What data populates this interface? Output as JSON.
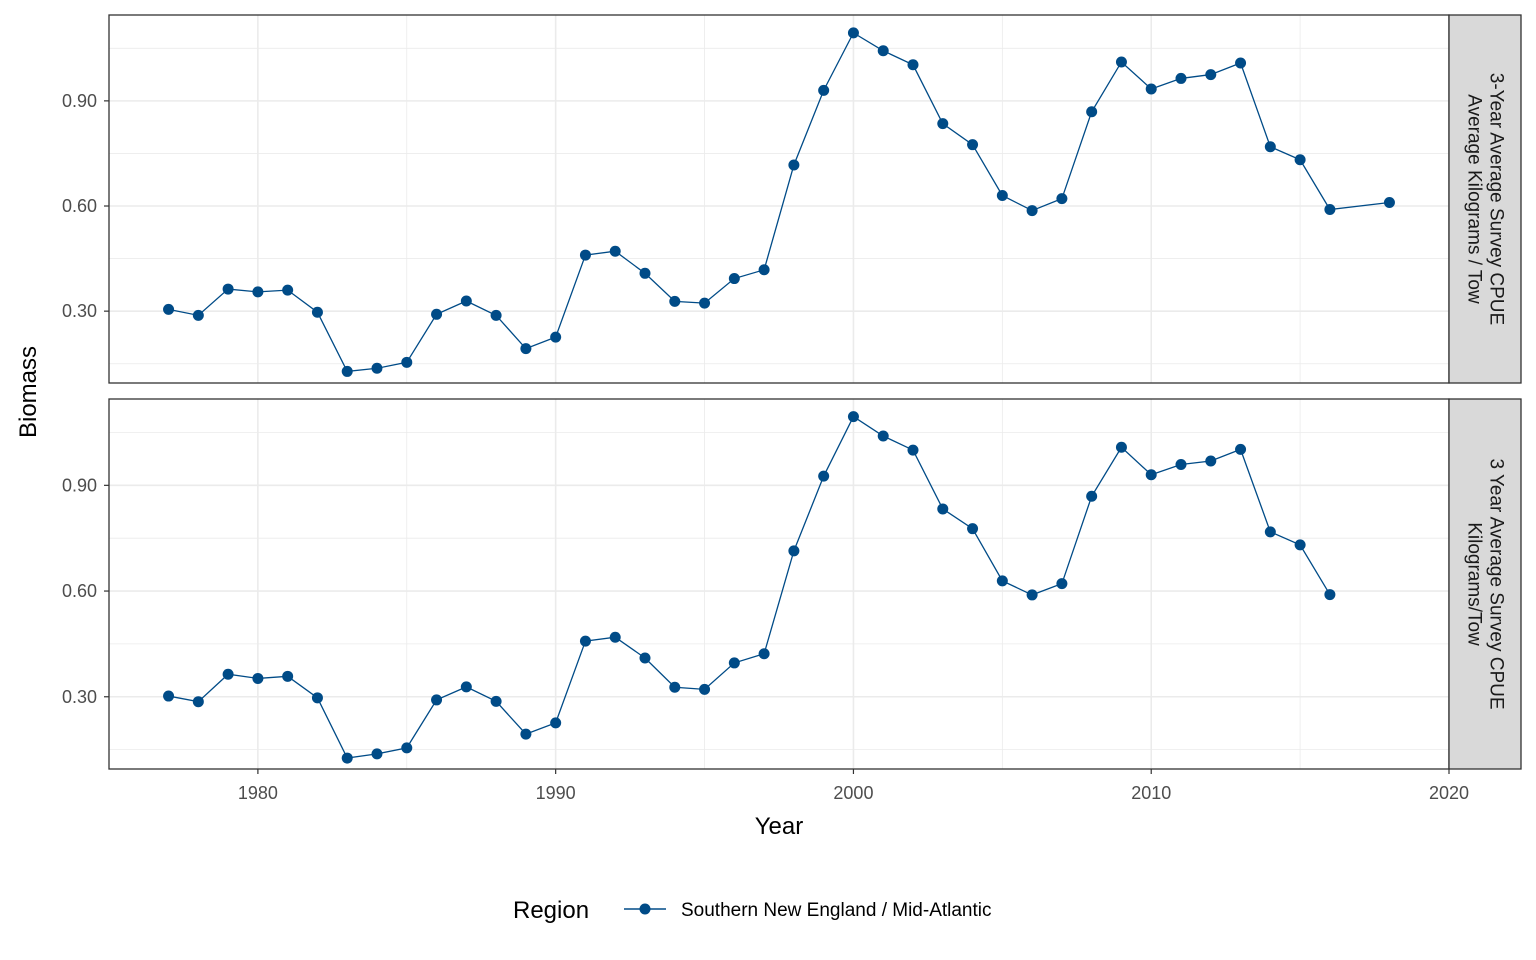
{
  "chart_data": {
    "type": "line",
    "xlabel": "Year",
    "ylabel": "Biomass",
    "xlim": [
      1975,
      2020
    ],
    "x_ticks": [
      "1980",
      "1990",
      "2000",
      "2010",
      "2020"
    ],
    "y_ticks": [
      "0.30",
      "0.60",
      "0.90"
    ],
    "ylim": [
      0.095,
      1.145
    ],
    "grid": true,
    "legend": {
      "position": "bottom",
      "title": "Region",
      "entries": [
        "Southern New England / Mid-Atlantic"
      ]
    },
    "colors": {
      "series": "#004b87",
      "strip_fill": "#d9d9d9",
      "grid": "#ebebeb"
    },
    "panels": [
      {
        "strip_lines": [
          "3-Year Average Survey CPUE",
          "Average Kilograms / Tow"
        ],
        "series": [
          {
            "name": "Southern New England / Mid-Atlantic",
            "x": [
              1977,
              1978,
              1979,
              1980,
              1981,
              1982,
              1983,
              1984,
              1985,
              1986,
              1987,
              1988,
              1989,
              1990,
              1991,
              1992,
              1993,
              1994,
              1995,
              1996,
              1997,
              1998,
              1999,
              2000,
              2001,
              2002,
              2003,
              2004,
              2005,
              2006,
              2007,
              2008,
              2009,
              2010,
              2011,
              2012,
              2013,
              2014,
              2015,
              2016,
              2018
            ],
            "y": [
              0.305,
              0.288,
              0.363,
              0.355,
              0.36,
              0.297,
              0.128,
              0.137,
              0.154,
              0.291,
              0.329,
              0.288,
              0.193,
              0.226,
              0.46,
              0.471,
              0.408,
              0.328,
              0.323,
              0.393,
              0.418,
              0.717,
              0.93,
              1.094,
              1.043,
              1.003,
              0.835,
              0.775,
              0.63,
              0.587,
              0.621,
              0.869,
              1.011,
              0.934,
              0.964,
              0.975,
              1.008,
              0.769,
              0.732,
              0.59,
              0.61
            ]
          }
        ]
      },
      {
        "strip_lines": [
          "3 Year Average Survey CPUE",
          "Kilograms/Tow"
        ],
        "series": [
          {
            "name": "Southern New England / Mid-Atlantic",
            "x": [
              1977,
              1978,
              1979,
              1980,
              1981,
              1982,
              1983,
              1984,
              1985,
              1986,
              1987,
              1988,
              1989,
              1990,
              1991,
              1992,
              1993,
              1994,
              1995,
              1996,
              1997,
              1998,
              1999,
              2000,
              2001,
              2002,
              2003,
              2004,
              2005,
              2006,
              2007,
              2008,
              2009,
              2010,
              2011,
              2012,
              2013,
              2014,
              2015,
              2016
            ],
            "y": [
              0.302,
              0.286,
              0.364,
              0.352,
              0.358,
              0.297,
              0.126,
              0.138,
              0.155,
              0.291,
              0.328,
              0.287,
              0.194,
              0.226,
              0.458,
              0.469,
              0.41,
              0.327,
              0.321,
              0.396,
              0.422,
              0.714,
              0.926,
              1.095,
              1.04,
              1.0,
              0.833,
              0.777,
              0.629,
              0.589,
              0.621,
              0.869,
              1.008,
              0.93,
              0.959,
              0.969,
              1.002,
              0.768,
              0.731,
              0.59
            ]
          }
        ]
      }
    ]
  }
}
